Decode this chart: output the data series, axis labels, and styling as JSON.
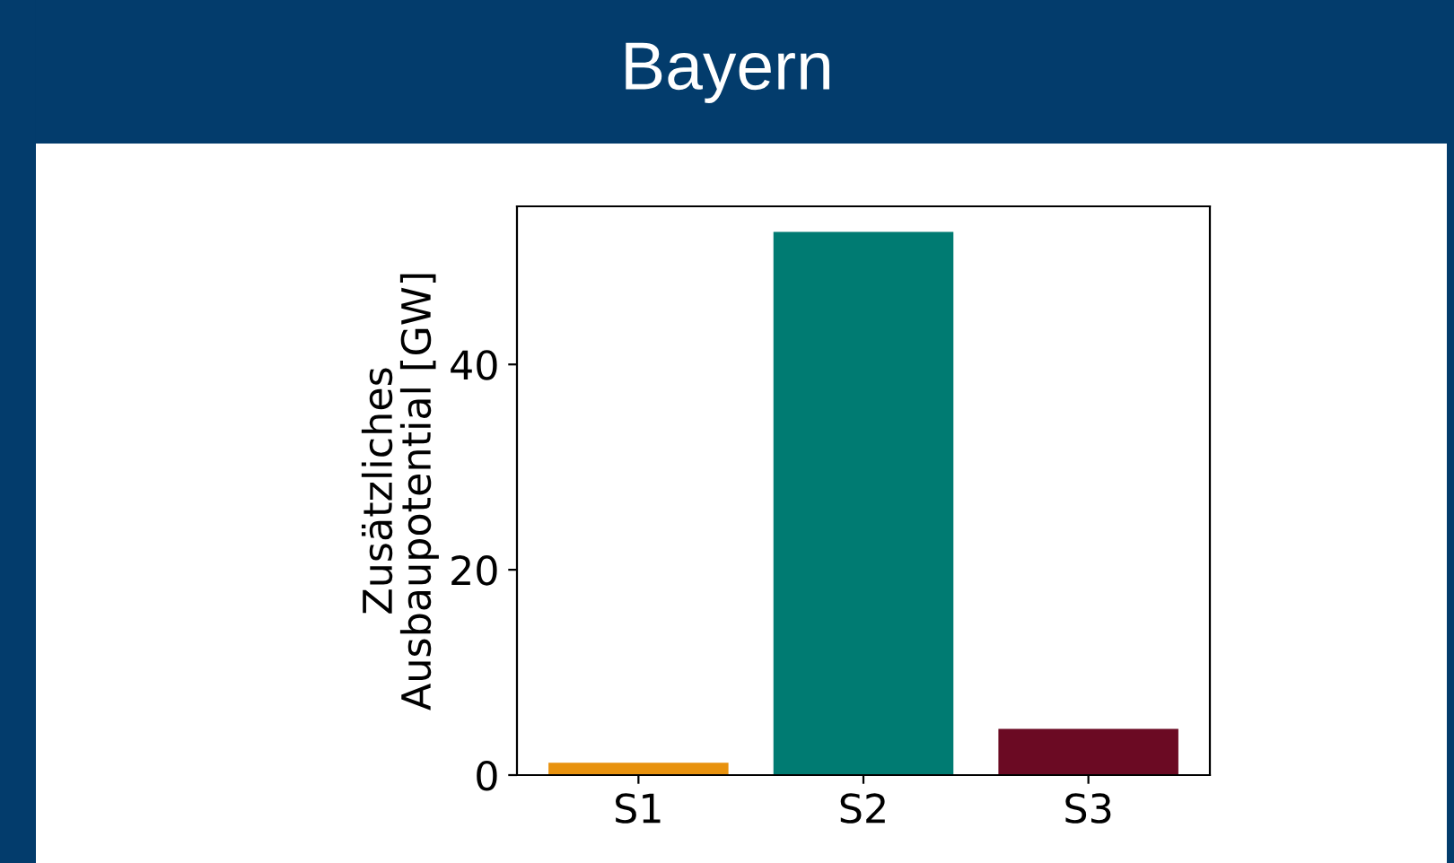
{
  "chart_data": {
    "type": "bar",
    "title": "Bayern",
    "ylabel": "Zusätzliches\nAusbaupotential [GW]",
    "categories": [
      "S1",
      "S2",
      "S3"
    ],
    "values": [
      1.2,
      52.9,
      4.5
    ],
    "colors": [
      "#e8920e",
      "#007b72",
      "#6b0a23"
    ],
    "ylim": [
      0,
      55.4
    ],
    "yticks": [
      0,
      20,
      40
    ],
    "grid": false,
    "legend": false
  }
}
